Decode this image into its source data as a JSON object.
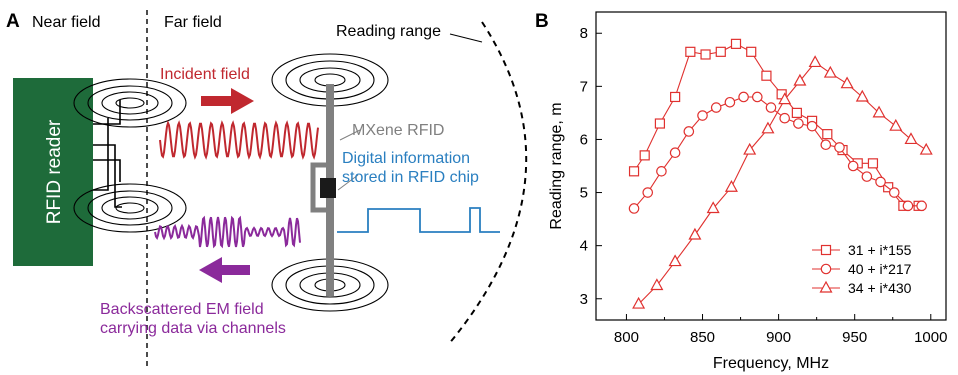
{
  "panel_a": {
    "panel_label": "A",
    "near_field_label": "Near field",
    "far_field_label": "Far field",
    "reading_range_label": "Reading range",
    "reader_label": "RFID reader",
    "incident_label": "Incident field",
    "tag_label": "MXene RFID",
    "digital_line1": "Digital information",
    "digital_line2": "stored in RFID chip",
    "backscatter_line1": "Backscattered EM field",
    "backscatter_line2": "carrying data via channels",
    "colors": {
      "reader": "#1e6b3a",
      "incident": "#c0282f",
      "backscatter": "#8b2a9b",
      "digital": "#2a7fc0",
      "tag": "#808080"
    }
  },
  "panel_b": {
    "panel_label": "B",
    "color": "#e0312f"
  },
  "chart_data": {
    "type": "line",
    "xlabel": "Frequency, MHz",
    "ylabel": "Reading range, m",
    "xlim": [
      780,
      1010
    ],
    "ylim": [
      2.6,
      8.4
    ],
    "xticks": [
      800,
      850,
      900,
      950,
      1000
    ],
    "yticks": [
      3,
      4,
      5,
      6,
      7,
      8
    ],
    "legend_position": "lower-right",
    "series": [
      {
        "name": "31 + i*155",
        "marker": "square",
        "x": [
          805,
          812,
          822,
          832,
          842,
          852,
          862,
          872,
          882,
          892,
          902,
          912,
          922,
          932,
          942,
          952,
          962,
          972,
          982,
          992
        ],
        "y": [
          5.4,
          5.7,
          6.3,
          6.8,
          7.65,
          7.6,
          7.65,
          7.8,
          7.65,
          7.2,
          6.85,
          6.5,
          6.35,
          6.1,
          5.8,
          5.55,
          5.55,
          5.1,
          4.75,
          4.75
        ]
      },
      {
        "name": "40 + i*217",
        "marker": "circle",
        "x": [
          805,
          814,
          823,
          832,
          841,
          850,
          859,
          868,
          877,
          886,
          895,
          904,
          913,
          922,
          931,
          940,
          949,
          958,
          967,
          976,
          985,
          994
        ],
        "y": [
          4.7,
          5.0,
          5.4,
          5.75,
          6.15,
          6.45,
          6.6,
          6.7,
          6.8,
          6.8,
          6.6,
          6.4,
          6.3,
          6.25,
          5.9,
          5.85,
          5.5,
          5.3,
          5.2,
          5.0,
          4.75,
          4.75
        ]
      },
      {
        "name": "34 + i*430",
        "marker": "triangle",
        "x": [
          808,
          820,
          832,
          845,
          857,
          869,
          881,
          893,
          904,
          914,
          924,
          934,
          945,
          955,
          966,
          977,
          987,
          997
        ],
        "y": [
          2.9,
          3.25,
          3.7,
          4.2,
          4.7,
          5.1,
          5.8,
          6.2,
          6.75,
          7.1,
          7.45,
          7.25,
          7.05,
          6.8,
          6.5,
          6.25,
          6.0,
          5.8
        ]
      }
    ]
  }
}
